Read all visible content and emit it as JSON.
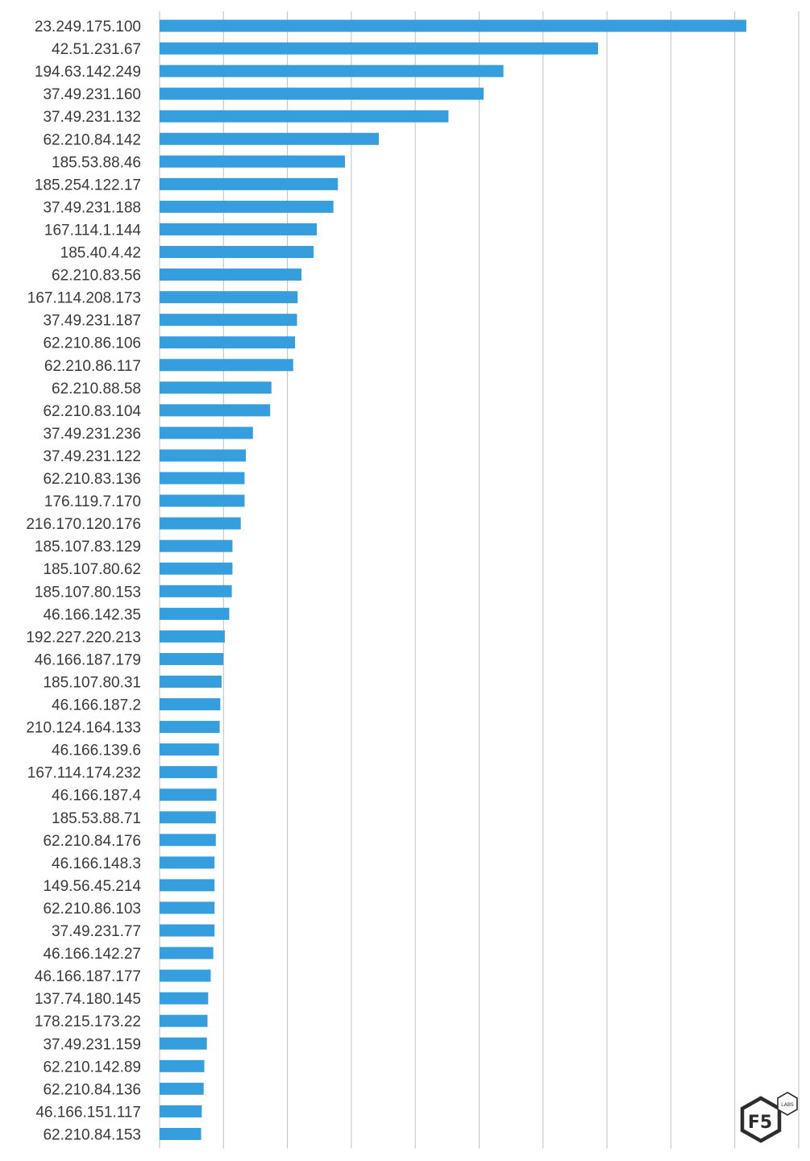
{
  "chart_data": {
    "type": "bar",
    "orientation": "horizontal",
    "categories": [
      "23.249.175.100",
      "42.51.231.67",
      "194.63.142.249",
      "37.49.231.160",
      "37.49.231.132",
      "62.210.84.142",
      "185.53.88.46",
      "185.254.122.17",
      "37.49.231.188",
      "167.114.1.144",
      "185.40.4.42",
      "62.210.83.56",
      "167.114.208.173",
      "37.49.231.187",
      "62.210.86.106",
      "62.210.86.117",
      "62.210.88.58",
      "62.210.83.104",
      "37.49.231.236",
      "37.49.231.122",
      "62.210.83.136",
      "176.119.7.170",
      "216.170.120.176",
      "185.107.83.129",
      "185.107.80.62",
      "185.107.80.153",
      "46.166.142.35",
      "192.227.220.213",
      "46.166.187.179",
      "185.107.80.31",
      "46.166.187.2",
      "210.124.164.133",
      "46.166.139.6",
      "167.114.174.232",
      "46.166.187.4",
      "185.53.88.71",
      "62.210.84.176",
      "46.166.148.3",
      "149.56.45.214",
      "62.210.86.103",
      "37.49.231.77",
      "46.166.142.27",
      "46.166.187.177",
      "137.74.180.145",
      "178.215.173.22",
      "37.49.231.159",
      "62.210.142.89",
      "62.210.84.136",
      "46.166.151.117",
      "62.210.84.153"
    ],
    "values": [
      9.18,
      6.86,
      5.38,
      5.07,
      4.52,
      3.43,
      2.9,
      2.79,
      2.72,
      2.46,
      2.41,
      2.22,
      2.16,
      2.15,
      2.12,
      2.09,
      1.75,
      1.73,
      1.46,
      1.35,
      1.33,
      1.33,
      1.27,
      1.14,
      1.14,
      1.13,
      1.09,
      1.02,
      1.0,
      0.97,
      0.95,
      0.94,
      0.93,
      0.9,
      0.89,
      0.88,
      0.88,
      0.86,
      0.86,
      0.86,
      0.86,
      0.84,
      0.8,
      0.76,
      0.75,
      0.74,
      0.7,
      0.69,
      0.66,
      0.65
    ],
    "xlim": [
      0,
      10
    ],
    "grid": true,
    "gridlines_vertical": 10,
    "bar_color": "#359ede",
    "grid_color": "#bfbfbf",
    "label_color": "#3a3a3a",
    "xlabel": "",
    "ylabel": ""
  },
  "logo": {
    "brand_text": "F5",
    "badge_text": "LABS"
  }
}
